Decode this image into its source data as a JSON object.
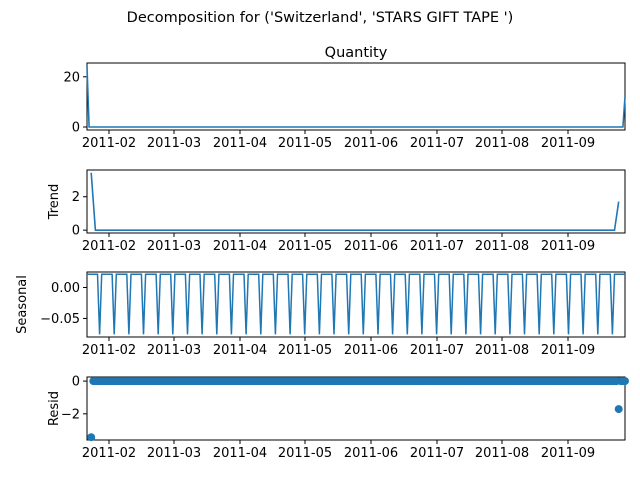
{
  "figure": {
    "suptitle": "Decomposition for ('Switzerland', 'STARS GIFT TAPE ')"
  },
  "chart_data": [
    {
      "type": "line",
      "title": "Quantity",
      "ylabel": "",
      "x_ticks": [
        "2011-02",
        "2011-03",
        "2011-04",
        "2011-05",
        "2011-06",
        "2011-07",
        "2011-08",
        "2011-09"
      ],
      "y_ticks": [
        "0",
        "20"
      ],
      "ylim": [
        -1.2,
        25.5
      ],
      "x_range": [
        "2011-01-18",
        "2011-10-02"
      ],
      "series": [
        {
          "values": [
            [
              0,
              24
            ],
            [
              1,
              0
            ],
            [
              256,
              0
            ],
            [
              257,
              12
            ]
          ]
        }
      ]
    },
    {
      "type": "line",
      "title": "",
      "ylabel": "Trend",
      "x_ticks": [
        "2011-02",
        "2011-03",
        "2011-04",
        "2011-05",
        "2011-06",
        "2011-07",
        "2011-08",
        "2011-09"
      ],
      "y_ticks": [
        "0",
        "2"
      ],
      "ylim": [
        -0.17,
        3.6
      ],
      "series": [
        {
          "values": [
            [
              2,
              3.43
            ],
            [
              4,
              0
            ],
            [
              252,
              0
            ],
            [
              254,
              1.71
            ]
          ]
        }
      ]
    },
    {
      "type": "line",
      "title": "",
      "ylabel": "Seasonal",
      "x_ticks": [
        "2011-02",
        "2011-03",
        "2011-04",
        "2011-05",
        "2011-06",
        "2011-07",
        "2011-08",
        "2011-09"
      ],
      "y_ticks": [
        "0.00",
        "−0.05"
      ],
      "ylim": [
        -0.08,
        0.025
      ],
      "period": 7,
      "series": [
        {
          "pattern": [
            0.0214,
            0.0214,
            0.0214,
            0.0214,
            0.0214,
            0.0214,
            -0.0756
          ]
        }
      ]
    },
    {
      "type": "scatter",
      "title": "",
      "ylabel": "Resid",
      "x_ticks": [
        "2011-02",
        "2011-03",
        "2011-04",
        "2011-05",
        "2011-06",
        "2011-07",
        "2011-08",
        "2011-09"
      ],
      "y_ticks": [
        "0",
        "−2"
      ],
      "ylim": [
        -3.6,
        0.25
      ],
      "series": [
        {
          "points": [
            [
              2,
              -3.43
            ],
            [
              254,
              -1.71
            ]
          ],
          "baseline": 0
        }
      ]
    }
  ],
  "colors": {
    "series": "#1f77b4",
    "axes": "#000000"
  }
}
